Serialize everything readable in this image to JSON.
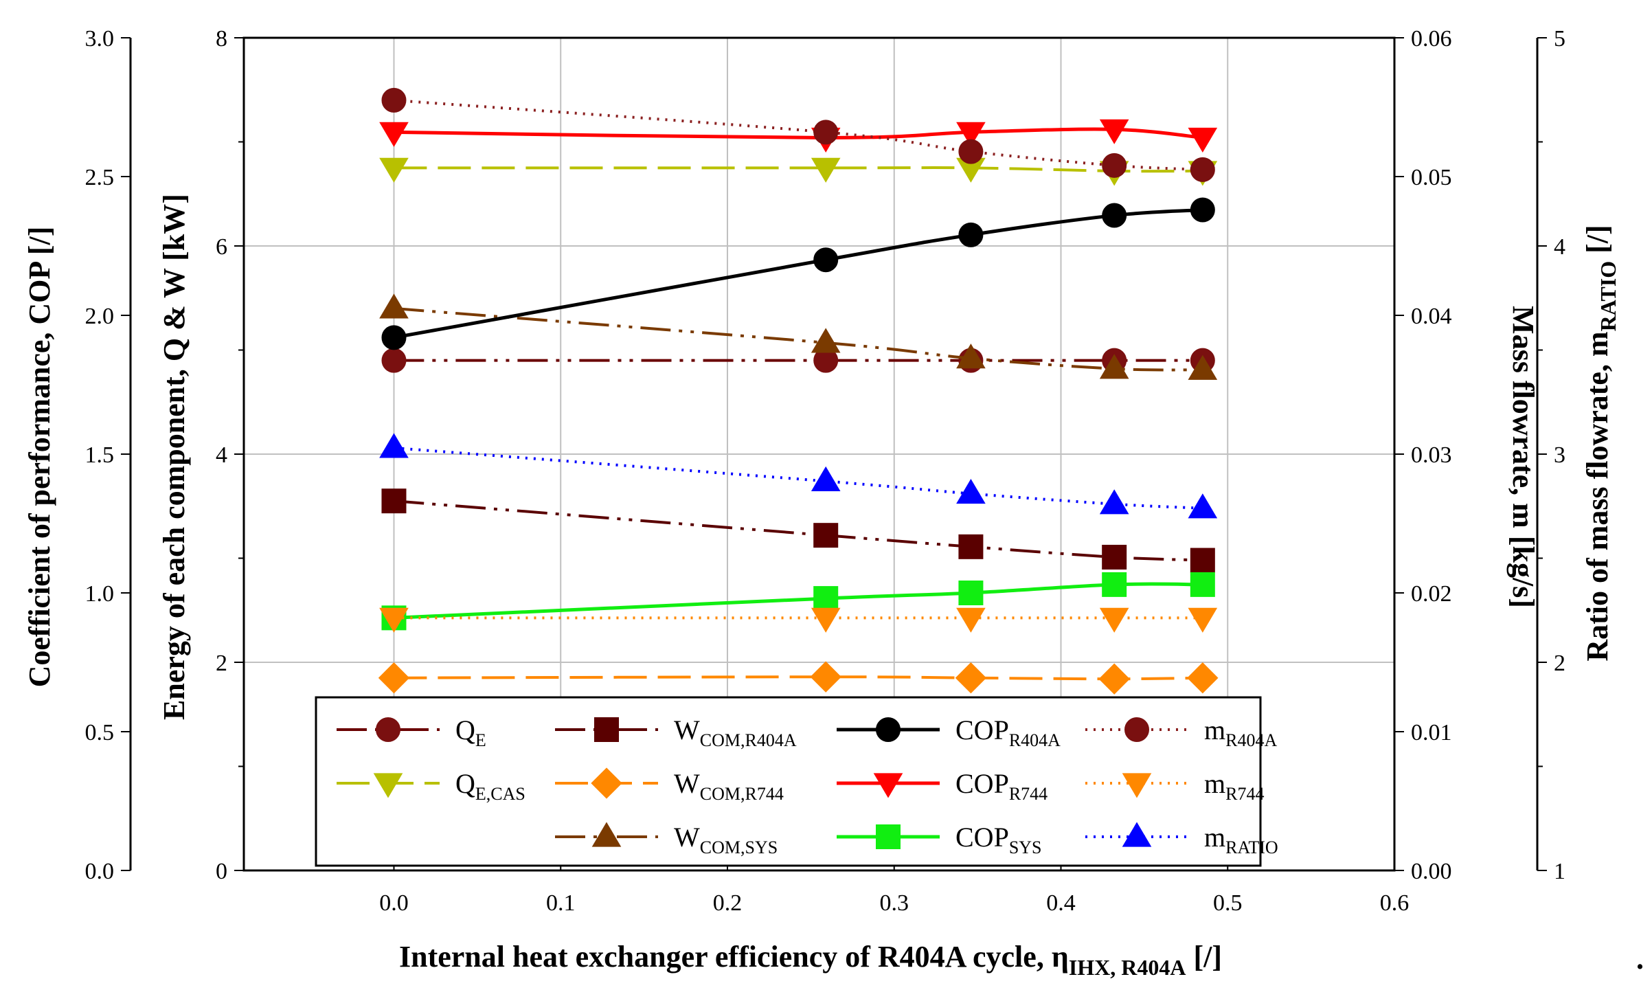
{
  "chart_data": {
    "type": "line",
    "title": "",
    "x_label": {
      "main": "Internal heat exchanger efficiency of R404A cycle, η",
      "sub": "IHX, R404A",
      "unit": " [/]"
    },
    "y_labels": {
      "cop": "Coefficient of performance, COP [/]",
      "energy": "Energy of each component, Q & W [kW]",
      "mass": "Mass flowrate, m [kg/s]",
      "ratio": {
        "main": "Ratio of mass flowrate, m",
        "sub": "RATIO",
        "unit": " [/]"
      }
    },
    "x_ticks": [
      "0.0",
      "0.1",
      "0.2",
      "0.3",
      "0.4",
      "0.5",
      "0.6"
    ],
    "axes": {
      "x": {
        "min": -0.09,
        "max": 0.6
      },
      "cop": {
        "min": 0,
        "max": 3.0,
        "ticks": [
          "0.0",
          "0.5",
          "1.0",
          "1.5",
          "2.0",
          "2.5",
          "3.0"
        ]
      },
      "energy": {
        "min": 0,
        "max": 8,
        "ticks": [
          "0",
          "2",
          "4",
          "6",
          "8"
        ]
      },
      "mass": {
        "min": 0,
        "max": 0.06,
        "ticks": [
          "0.00",
          "0.01",
          "0.02",
          "0.03",
          "0.04",
          "0.05",
          "0.06"
        ]
      },
      "ratio": {
        "min": 1,
        "max": 5,
        "ticks": [
          "1",
          "2",
          "3",
          "4",
          "5"
        ]
      }
    },
    "x": [
      0.0,
      0.259,
      0.346,
      0.432,
      0.485
    ],
    "series": [
      {
        "name": "Q",
        "sub": "E",
        "axis": "energy",
        "values": [
          4.9,
          4.9,
          4.9,
          4.9,
          4.9
        ],
        "color": "#7a1010",
        "line_color": "#6a0000",
        "marker": "circle",
        "dash": "dashdotdot"
      },
      {
        "name": "Q",
        "sub": "E,CAS",
        "axis": "energy",
        "values": [
          6.75,
          6.75,
          6.75,
          6.72,
          6.72
        ],
        "color": "#b8c000",
        "line_color": "#b8c000",
        "marker": "triangle-down",
        "dash": "longdash"
      },
      {
        "name": "W",
        "sub": "COM,R404A",
        "axis": "energy",
        "values": [
          3.55,
          3.22,
          3.11,
          3.01,
          2.98
        ],
        "color": "#5a0000",
        "line_color": "#5a0000",
        "marker": "square",
        "dash": "dashdotdot"
      },
      {
        "name": "W",
        "sub": "COM,R744",
        "axis": "energy",
        "values": [
          1.85,
          1.86,
          1.85,
          1.84,
          1.85
        ],
        "color": "#ff8800",
        "line_color": "#ff8800",
        "marker": "diamond",
        "dash": "longdash"
      },
      {
        "name": "W",
        "sub": "COM,SYS",
        "axis": "energy",
        "values": [
          5.4,
          5.07,
          4.92,
          4.82,
          4.81
        ],
        "color": "#7a3a00",
        "line_color": "#7a3a00",
        "marker": "triangle-up",
        "dash": "dashdotdot"
      },
      {
        "name": "COP",
        "sub": "R404A",
        "axis": "cop",
        "values": [
          1.92,
          2.2,
          2.29,
          2.36,
          2.38
        ],
        "color": "#000000",
        "line_color": "#000000",
        "marker": "circle",
        "dash": "solid"
      },
      {
        "name": "COP",
        "sub": "R744",
        "axis": "cop",
        "values": [
          2.66,
          2.64,
          2.66,
          2.67,
          2.64
        ],
        "color": "#ff0000",
        "line_color": "#ff0000",
        "marker": "triangle-down",
        "dash": "solid"
      },
      {
        "name": "COP",
        "sub": "SYS",
        "axis": "cop",
        "values": [
          0.91,
          0.98,
          1.0,
          1.03,
          1.03
        ],
        "color": "#11ee11",
        "line_color": "#11ee11",
        "marker": "square",
        "dash": "solid"
      },
      {
        "name": "m",
        "sub": "R404A",
        "axis": "mass",
        "values": [
          0.0555,
          0.0532,
          0.0518,
          0.0508,
          0.0505
        ],
        "color": "#7a1010",
        "line_color": "#8b2020",
        "marker": "circle",
        "dash": "dotted"
      },
      {
        "name": "m",
        "sub": "R744",
        "axis": "mass",
        "values": [
          0.0182,
          0.0182,
          0.0182,
          0.0182,
          0.0182
        ],
        "color": "#ff8800",
        "line_color": "#ff8800",
        "marker": "triangle-down",
        "dash": "dotted"
      },
      {
        "name": "m",
        "sub": "RATIO",
        "axis": "ratio",
        "values": [
          3.03,
          2.87,
          2.81,
          2.76,
          2.74
        ],
        "color": "#0000ff",
        "line_color": "#0000ff",
        "marker": "triangle-up",
        "dash": "dotted"
      }
    ],
    "legend": {
      "placement": "bottom-center",
      "columns": [
        [
          0,
          1
        ],
        [
          2,
          3,
          4
        ],
        [
          5,
          6,
          7
        ],
        [
          8,
          9,
          10
        ]
      ]
    },
    "trailing_mark": "."
  }
}
